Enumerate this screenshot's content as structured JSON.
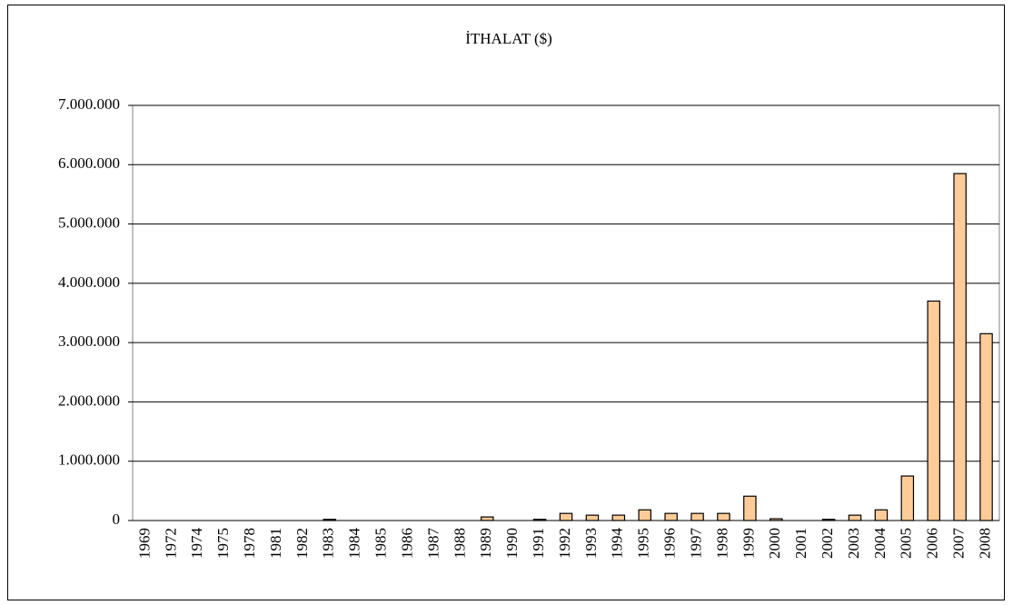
{
  "chart_data": {
    "type": "bar",
    "title": "İTHALAT ($)",
    "categories": [
      "1969",
      "1972",
      "1974",
      "1975",
      "1978",
      "1981",
      "1982",
      "1983",
      "1984",
      "1985",
      "1986",
      "1987",
      "1988",
      "1989",
      "1990",
      "1991",
      "1992",
      "1993",
      "1994",
      "1995",
      "1996",
      "1997",
      "1998",
      "1999",
      "2000",
      "2001",
      "2002",
      "2003",
      "2004",
      "2005",
      "2006",
      "2007",
      "2008"
    ],
    "values": [
      0,
      0,
      0,
      0,
      0,
      0,
      0,
      20000,
      0,
      0,
      0,
      0,
      0,
      60000,
      0,
      20000,
      120000,
      90000,
      90000,
      180000,
      120000,
      120000,
      120000,
      410000,
      30000,
      0,
      20000,
      90000,
      180000,
      750000,
      3700000,
      5850000,
      3150000
    ],
    "color": "#ffcc99",
    "ylim": [
      0,
      7000000
    ],
    "yticks": [
      0,
      {
        "value": 1000000,
        "label": "1.000.000"
      },
      {
        "value": 2000000,
        "label": "2.000.000"
      },
      {
        "value": 3000000,
        "label": "3.000.000"
      },
      {
        "value": 4000000,
        "label": "4.000.000"
      },
      {
        "value": 5000000,
        "label": "5.000.000"
      },
      {
        "value": 6000000,
        "label": "6.000.000"
      },
      {
        "value": 7000000,
        "label": "7.000.000"
      }
    ],
    "grid": true
  }
}
